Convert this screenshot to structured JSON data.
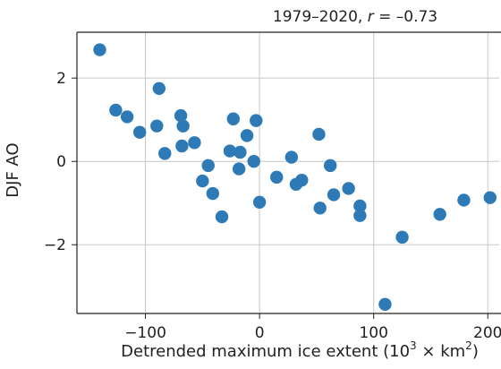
{
  "chart_data": {
    "type": "scatter",
    "title": "1979–2020, ",
    "title_r_symbol": "r",
    "title_r_value": " = –0.73",
    "xlabel": "Detrended maximum ice extent (10",
    "xlabel_exp1": "3",
    "xlabel_mid": " × km",
    "xlabel_exp2": "2",
    "xlabel_end": ")",
    "ylabel": "DJF AO",
    "xlim": [
      -160,
      210
    ],
    "ylim": [
      -3.65,
      3.1
    ],
    "x_ticks": [
      -100,
      0,
      100,
      200
    ],
    "x_tick_labels": [
      "−100",
      "0",
      "100",
      "200"
    ],
    "y_ticks": [
      -2,
      0,
      2
    ],
    "y_tick_labels": [
      "−2",
      "0",
      "2"
    ],
    "grid": true,
    "marker_color": "#2e7ab7",
    "points": [
      {
        "x": -140,
        "y": 2.68
      },
      {
        "x": -126,
        "y": 1.23
      },
      {
        "x": -116,
        "y": 1.07
      },
      {
        "x": -105,
        "y": 0.7
      },
      {
        "x": -90,
        "y": 0.85
      },
      {
        "x": -88,
        "y": 1.75
      },
      {
        "x": -83,
        "y": 0.19
      },
      {
        "x": -69,
        "y": 1.1
      },
      {
        "x": -68,
        "y": 0.37
      },
      {
        "x": -67,
        "y": 0.85
      },
      {
        "x": -57,
        "y": 0.45
      },
      {
        "x": -50,
        "y": -0.47
      },
      {
        "x": -45,
        "y": -0.1
      },
      {
        "x": -41,
        "y": -0.77
      },
      {
        "x": -33,
        "y": -1.33
      },
      {
        "x": -26,
        "y": 0.25
      },
      {
        "x": -23,
        "y": 1.02
      },
      {
        "x": -18,
        "y": -0.18
      },
      {
        "x": -17,
        "y": 0.22
      },
      {
        "x": -11,
        "y": 0.62
      },
      {
        "x": -5,
        "y": 0.0
      },
      {
        "x": -3,
        "y": 0.98
      },
      {
        "x": 0,
        "y": -0.98
      },
      {
        "x": 15,
        "y": -0.38
      },
      {
        "x": 28,
        "y": 0.1
      },
      {
        "x": 32,
        "y": -0.55
      },
      {
        "x": 37,
        "y": -0.45
      },
      {
        "x": 52,
        "y": 0.65
      },
      {
        "x": 53,
        "y": -1.12
      },
      {
        "x": 62,
        "y": -0.1
      },
      {
        "x": 65,
        "y": -0.8
      },
      {
        "x": 78,
        "y": -0.65
      },
      {
        "x": 88,
        "y": -1.07
      },
      {
        "x": 88,
        "y": -1.3
      },
      {
        "x": 110,
        "y": -3.43
      },
      {
        "x": 125,
        "y": -1.82
      },
      {
        "x": 158,
        "y": -1.27
      },
      {
        "x": 179,
        "y": -0.93
      },
      {
        "x": 202,
        "y": -0.87
      }
    ]
  }
}
